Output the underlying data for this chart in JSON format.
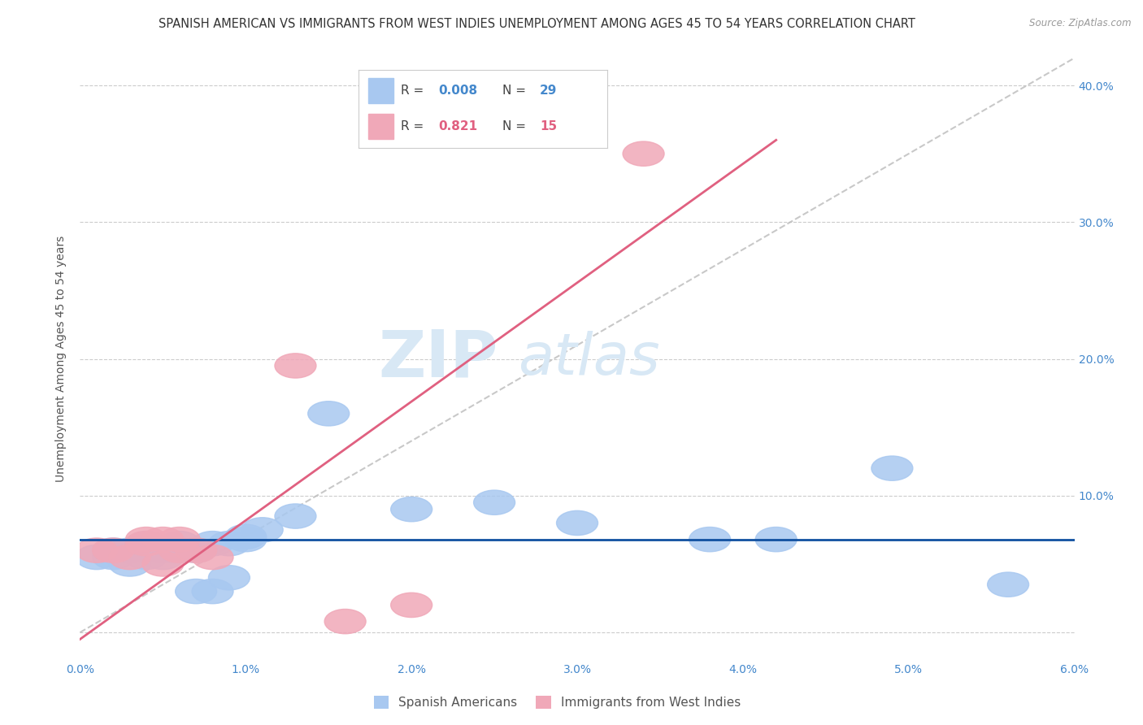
{
  "title": "SPANISH AMERICAN VS IMMIGRANTS FROM WEST INDIES UNEMPLOYMENT AMONG AGES 45 TO 54 YEARS CORRELATION CHART",
  "source": "Source: ZipAtlas.com",
  "ylabel": "Unemployment Among Ages 45 to 54 years",
  "xlim": [
    0.0,
    0.06
  ],
  "ylim": [
    -0.02,
    0.42
  ],
  "xticks": [
    0.0,
    0.01,
    0.02,
    0.03,
    0.04,
    0.05,
    0.06
  ],
  "xticklabels": [
    "0.0%",
    "1.0%",
    "2.0%",
    "3.0%",
    "4.0%",
    "5.0%",
    "6.0%"
  ],
  "yticks": [
    0.0,
    0.1,
    0.2,
    0.3,
    0.4
  ],
  "yticklabels": [
    "",
    "10.0%",
    "20.0%",
    "30.0%",
    "40.0%"
  ],
  "blue_R": "0.008",
  "blue_N": "29",
  "pink_R": "0.821",
  "pink_N": "15",
  "blue_color": "#A8C8F0",
  "pink_color": "#F0A8B8",
  "blue_line_color": "#1050A0",
  "pink_line_color": "#E06080",
  "right_axis_color": "#4488CC",
  "title_fontsize": 10.5,
  "axis_label_fontsize": 10,
  "tick_fontsize": 10,
  "legend_fontsize": 11,
  "blue_x": [
    0.001,
    0.002,
    0.002,
    0.003,
    0.003,
    0.004,
    0.004,
    0.005,
    0.005,
    0.006,
    0.006,
    0.007,
    0.007,
    0.008,
    0.008,
    0.009,
    0.009,
    0.01,
    0.01,
    0.011,
    0.013,
    0.015,
    0.02,
    0.025,
    0.03,
    0.038,
    0.042,
    0.049,
    0.056
  ],
  "blue_y": [
    0.055,
    0.055,
    0.06,
    0.05,
    0.06,
    0.055,
    0.065,
    0.055,
    0.06,
    0.06,
    0.065,
    0.06,
    0.03,
    0.03,
    0.065,
    0.065,
    0.04,
    0.07,
    0.068,
    0.075,
    0.085,
    0.16,
    0.09,
    0.095,
    0.08,
    0.068,
    0.068,
    0.12,
    0.035
  ],
  "pink_x": [
    0.001,
    0.002,
    0.003,
    0.004,
    0.004,
    0.005,
    0.005,
    0.006,
    0.006,
    0.007,
    0.008,
    0.013,
    0.016,
    0.02,
    0.034
  ],
  "pink_y": [
    0.06,
    0.06,
    0.055,
    0.068,
    0.065,
    0.068,
    0.05,
    0.068,
    0.06,
    0.06,
    0.055,
    0.195,
    0.008,
    0.02,
    0.35
  ],
  "blue_line_y0": 0.068,
  "blue_line_y1": 0.068,
  "pink_line_x0": 0.0,
  "pink_line_y0": -0.005,
  "pink_line_x1": 0.042,
  "pink_line_y1": 0.36,
  "ref_line_x0": 0.0,
  "ref_line_y0": 0.0,
  "ref_line_x1": 0.06,
  "ref_line_y1": 0.42,
  "watermark_zip": "ZIP",
  "watermark_atlas": "atlas",
  "background_color": "#FFFFFF"
}
